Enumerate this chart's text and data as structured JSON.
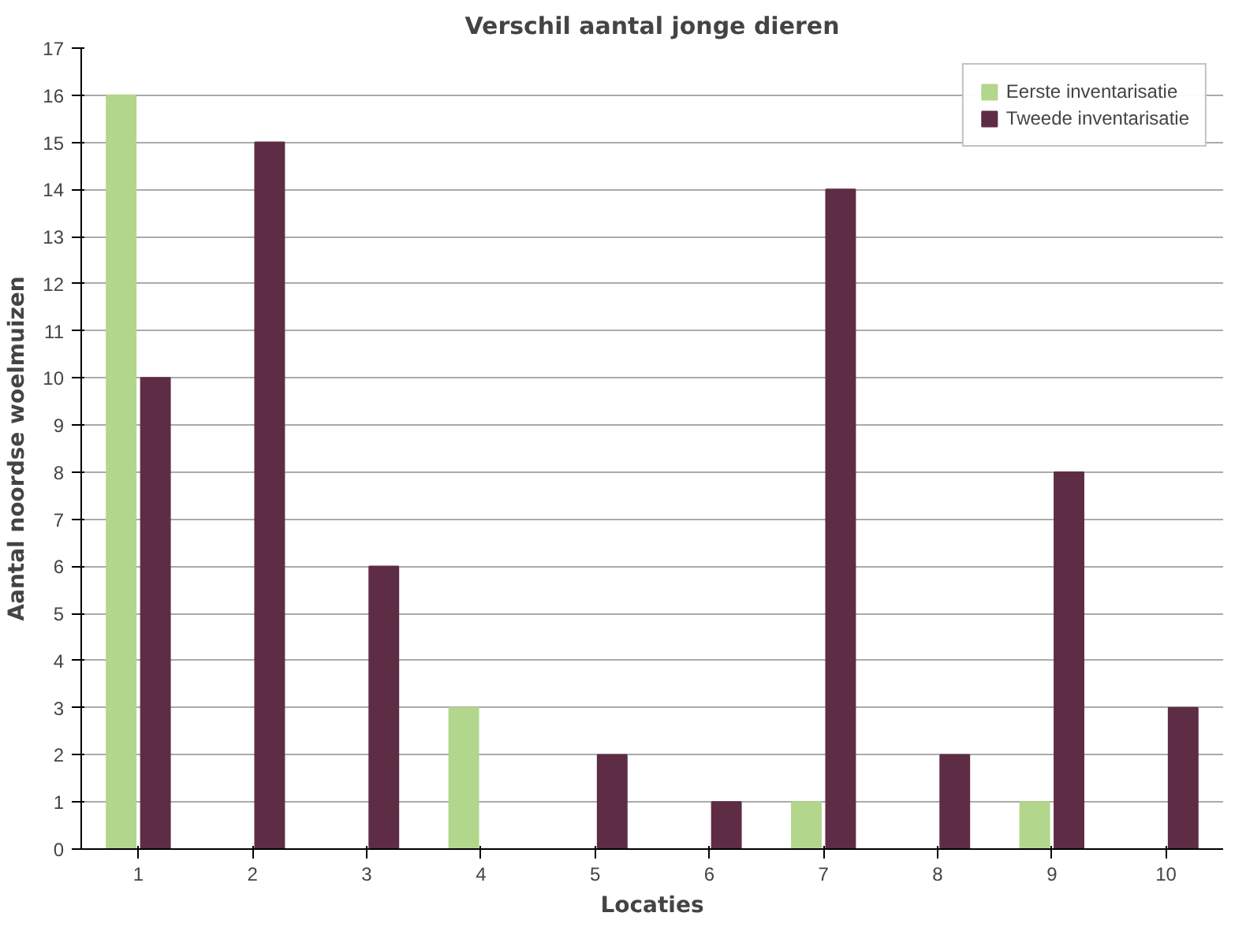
{
  "chart_data": {
    "type": "bar",
    "title": "Verschil aantal jonge dieren",
    "xlabel": "Locaties",
    "ylabel": "Aantal noordse woelmuizen",
    "categories": [
      "1",
      "2",
      "3",
      "4",
      "5",
      "6",
      "7",
      "8",
      "9",
      "10"
    ],
    "series": [
      {
        "name": "Eerste inventarisatie",
        "color": "#b2d68c",
        "values": [
          16,
          0,
          0,
          3,
          0,
          0,
          1,
          0,
          1,
          0
        ]
      },
      {
        "name": "Tweede inventarisatie",
        "color": "#5e2d45",
        "values": [
          10,
          15,
          6,
          0,
          2,
          1,
          14,
          2,
          8,
          3
        ]
      }
    ],
    "ylim": [
      0,
      17
    ],
    "yticks": [
      0,
      1,
      2,
      3,
      4,
      5,
      6,
      7,
      8,
      9,
      10,
      11,
      12,
      13,
      14,
      15,
      16,
      17
    ],
    "grid": "y",
    "legend": "top right"
  }
}
